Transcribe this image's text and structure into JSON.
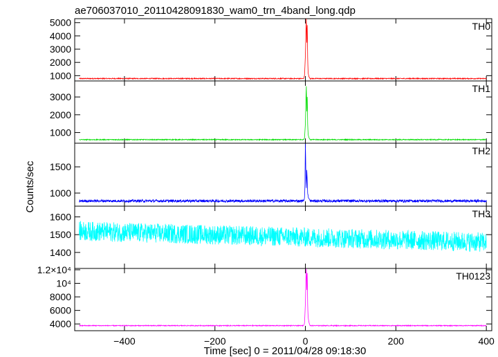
{
  "chart_data": {
    "type": "line",
    "title": "ae706037010_20110428091830_wam0_trn_4band_long.qdp",
    "xlabel": "Time [sec] 0 = 2011/04/28 09:18:30",
    "ylabel": "Counts/sec",
    "xlim": [
      -510,
      412
    ],
    "xticks": [
      -400,
      -200,
      0,
      200,
      400
    ],
    "xtick_labels": [
      "−400",
      "−200",
      "0",
      "200",
      "400"
    ],
    "grid": false,
    "legend": "none",
    "panels": [
      {
        "name": "TH0",
        "color": "#ff0000",
        "ylim": [
          600,
          5300
        ],
        "yticks": [
          1000,
          2000,
          3000,
          4000,
          5000
        ],
        "ytick_labels": [
          "1000",
          "2000",
          "3000",
          "4000",
          "5000"
        ],
        "baseline": 780,
        "noise": 35,
        "burst": [
          [
            -4,
            780
          ],
          [
            -2,
            1000
          ],
          [
            0,
            2500
          ],
          [
            1,
            4200
          ],
          [
            2,
            5300
          ],
          [
            3,
            3500
          ],
          [
            4,
            4800
          ],
          [
            5,
            2400
          ],
          [
            6,
            1200
          ],
          [
            8,
            900
          ],
          [
            10,
            800
          ]
        ]
      },
      {
        "name": "TH1",
        "color": "#00dd00",
        "ylim": [
          400,
          3900
        ],
        "yticks": [
          1000,
          2000,
          3000
        ],
        "ytick_labels": [
          "1000",
          "2000",
          "3000"
        ],
        "baseline": 600,
        "noise": 25,
        "burst": [
          [
            -4,
            600
          ],
          [
            -2,
            700
          ],
          [
            0,
            1500
          ],
          [
            1,
            2800
          ],
          [
            2,
            3600
          ],
          [
            3,
            2200
          ],
          [
            4,
            3000
          ],
          [
            5,
            1500
          ],
          [
            6,
            900
          ],
          [
            8,
            700
          ],
          [
            10,
            620
          ]
        ]
      },
      {
        "name": "TH2",
        "color": "#0000ff",
        "ylim": [
          750,
          1950
        ],
        "yticks": [
          1000,
          1500
        ],
        "ytick_labels": [
          "1000",
          "1500"
        ],
        "baseline": 850,
        "noise": 25,
        "burst": [
          [
            -4,
            860
          ],
          [
            -2,
            900
          ],
          [
            -1,
            1150
          ],
          [
            0,
            1950
          ],
          [
            1,
            1350
          ],
          [
            2,
            1100
          ],
          [
            3,
            1450
          ],
          [
            4,
            1250
          ],
          [
            5,
            1000
          ],
          [
            7,
            900
          ],
          [
            10,
            860
          ]
        ]
      },
      {
        "name": "TH3",
        "color": "#00ffff",
        "ylim": [
          1310,
          1660
        ],
        "yticks": [
          1400,
          1500,
          1600
        ],
        "ytick_labels": [
          "1400",
          "1500",
          "1600"
        ],
        "baseline": 1485,
        "noise": 55,
        "trend": -0.07,
        "burst": []
      },
      {
        "name": "TH0123",
        "color": "#ff00ff",
        "ylim": [
          3000,
          12200
        ],
        "yticks": [
          4000,
          6000,
          8000,
          10000,
          12000
        ],
        "ytick_labels": [
          "4000",
          "6000",
          "8000",
          "10⁴",
          "1.2×10⁴"
        ],
        "baseline": 3750,
        "noise": 60,
        "burst": [
          [
            -4,
            3760
          ],
          [
            -2,
            4100
          ],
          [
            0,
            7000
          ],
          [
            1,
            10500
          ],
          [
            2,
            12200
          ],
          [
            3,
            9000
          ],
          [
            4,
            11500
          ],
          [
            5,
            7000
          ],
          [
            6,
            5000
          ],
          [
            8,
            4200
          ],
          [
            10,
            3800
          ]
        ]
      }
    ]
  }
}
